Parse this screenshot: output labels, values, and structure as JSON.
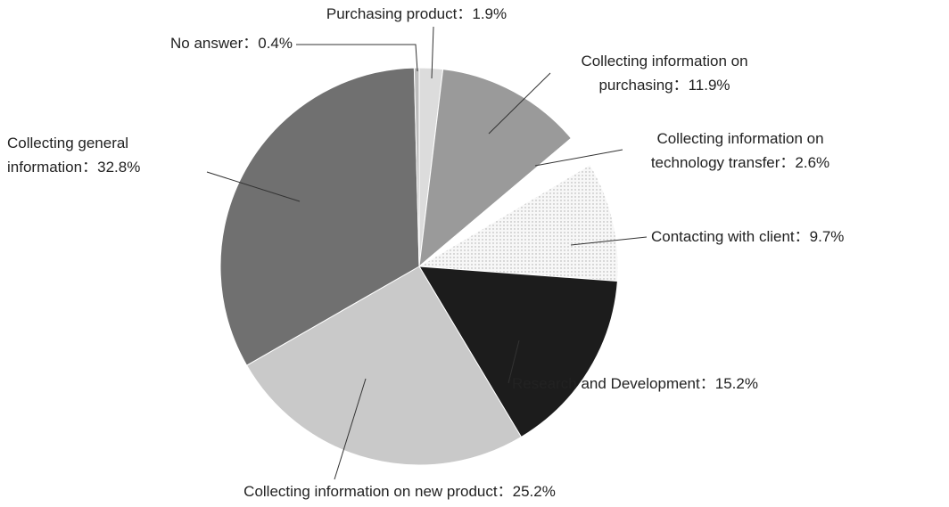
{
  "chart_data": {
    "type": "pie",
    "separator": "：",
    "categories": [
      "Purchasing product",
      "Collecting information on purchasing",
      "Collecting information on technology transfer",
      "Contacting with client",
      "Research and Development",
      "Collecting information on new product",
      "Collecting general information",
      "No answer"
    ],
    "values": [
      1.9,
      11.9,
      2.6,
      9.7,
      15.2,
      25.2,
      32.8,
      0.4
    ],
    "value_labels": [
      "1.9%",
      "11.9%",
      "2.6%",
      "9.7%",
      "15.2%",
      "25.2%",
      "32.8%",
      "0.4%"
    ],
    "colors": [
      "#dcdcdc",
      "#9a9a9a",
      "#ffffff",
      "#f3f3f3",
      "#1c1c1c",
      "#c9c9c9",
      "#707070",
      "#bdbdbd"
    ]
  }
}
